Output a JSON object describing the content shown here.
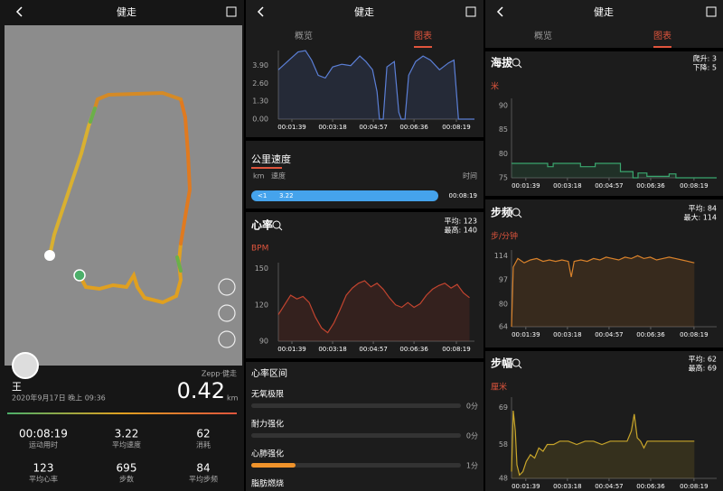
{
  "panel1": {
    "title": "健走",
    "name": "王",
    "date": "2020年9月17日 晚上 09:36",
    "brand": "Zepp·健走",
    "distance": "0.42",
    "distance_unit": "km",
    "stats": [
      {
        "value": "00:08:19",
        "label": "运动用时"
      },
      {
        "value": "3.22",
        "label": "平均速度"
      },
      {
        "value": "62",
        "label": "消耗"
      },
      {
        "value": "123",
        "label": "平均心率"
      },
      {
        "value": "695",
        "label": "步数"
      },
      {
        "value": "84",
        "label": "平均步频"
      }
    ]
  },
  "panel2": {
    "title": "健走",
    "tabs": [
      "概览",
      "图表"
    ],
    "speed_chart": {
      "type": "line",
      "color": "#5b7fd6",
      "xlim": [
        66,
        543
      ],
      "ylim": [
        0,
        5
      ],
      "yticks": [
        {
          "value": 3.9,
          "label": "3.90"
        },
        {
          "value": 2.6,
          "label": "2.60"
        },
        {
          "value": 1.3,
          "label": "1.30"
        },
        {
          "value": 0,
          "label": "0.00"
        }
      ],
      "xticks": [
        {
          "value": 99,
          "label": "00:01:39"
        },
        {
          "value": 198,
          "label": "00:03:18"
        },
        {
          "value": 297,
          "label": "00:04:57"
        },
        {
          "value": 396,
          "label": "00:06:36"
        },
        {
          "value": 499,
          "label": "00:08:19"
        }
      ],
      "x": [
        66,
        92,
        114,
        132,
        147,
        163,
        180,
        198,
        220,
        242,
        264,
        279,
        295,
        306,
        312,
        321,
        330,
        348,
        359,
        365,
        374,
        383,
        400,
        418,
        436,
        458,
        480,
        493,
        499,
        504,
        543
      ],
      "values": [
        3.6,
        4.3,
        4.9,
        5.0,
        4.3,
        3.2,
        3.0,
        3.8,
        4.0,
        3.9,
        4.6,
        4.2,
        3.6,
        2.0,
        0,
        0,
        3.8,
        4.2,
        0.5,
        0,
        0,
        3.2,
        4.2,
        4.6,
        4.3,
        3.6,
        4.1,
        4.3,
        2.0,
        0,
        0
      ]
    },
    "pace": {
      "title": "公里速度",
      "col_km": "km",
      "col_speed": "速度",
      "col_time": "时间",
      "km": "<1",
      "speed": "3.22",
      "time": "00:08:19"
    },
    "heart_rate": {
      "type": "line",
      "title": "心率",
      "avg": "平均: 123",
      "max": "最高: 140",
      "unit": "BPM",
      "color": "#c2442f",
      "xlim": [
        66,
        543
      ],
      "ylim": [
        90,
        155
      ],
      "yticks": [
        150,
        120,
        90
      ],
      "xticks": [
        {
          "value": 99,
          "label": "00:01:39"
        },
        {
          "value": 198,
          "label": "00:03:18"
        },
        {
          "value": 297,
          "label": "00:04:57"
        },
        {
          "value": 396,
          "label": "00:06:36"
        },
        {
          "value": 499,
          "label": "00:08:19"
        }
      ],
      "x": [
        66,
        81,
        96,
        111,
        126,
        141,
        156,
        171,
        186,
        201,
        216,
        231,
        246,
        261,
        276,
        291,
        306,
        321,
        336,
        351,
        366,
        381,
        396,
        411,
        426,
        441,
        456,
        471,
        486,
        501,
        516,
        531
      ],
      "values": [
        112,
        120,
        128,
        125,
        127,
        122,
        110,
        101,
        97,
        105,
        116,
        128,
        134,
        138,
        140,
        135,
        138,
        133,
        126,
        120,
        118,
        122,
        118,
        121,
        128,
        133,
        136,
        138,
        134,
        137,
        130,
        126
      ]
    },
    "zones": {
      "title": "心率区间",
      "rows": [
        {
          "name": "无氧极限",
          "minutes": 0,
          "label": "0分"
        },
        {
          "name": "耐力强化",
          "minutes": 0,
          "label": "0分"
        },
        {
          "name": "心肺强化",
          "minutes": 1,
          "label": "1分"
        },
        {
          "name": "脂肪燃烧"
        }
      ]
    }
  },
  "panel3": {
    "title": "健走",
    "tabs": [
      "概览",
      "图表"
    ],
    "altitude": {
      "type": "line",
      "title": "海拔",
      "avg": "爬升: 3",
      "max": "下降: 5",
      "unit": "米",
      "color": "#3aa56e",
      "xlim": [
        65,
        553
      ],
      "ylim": [
        75,
        91.5
      ],
      "yticks": [
        90,
        85,
        80,
        75
      ],
      "xticks": [
        {
          "value": 99,
          "label": "00:01:39"
        },
        {
          "value": 198,
          "label": "00:03:18"
        },
        {
          "value": 297,
          "label": "00:04:57"
        },
        {
          "value": 396,
          "label": "00:06:36"
        },
        {
          "value": 499,
          "label": "00:08:19"
        }
      ],
      "x": [
        65,
        151,
        151,
        164,
        164,
        229,
        229,
        264,
        264,
        324,
        324,
        354,
        354,
        366,
        366,
        387,
        387,
        440,
        440,
        456,
        456,
        553
      ],
      "values": [
        78,
        78,
        77.3,
        77.3,
        78,
        78,
        77.3,
        77.3,
        78,
        78,
        76.3,
        76.3,
        75,
        75,
        76,
        76,
        75.3,
        75.3,
        75.8,
        75.8,
        75,
        75
      ]
    },
    "cadence": {
      "type": "line",
      "title": "步频",
      "avg": "平均: 84",
      "max": "最大: 114",
      "unit": "步/分钟",
      "color": "#d9822b",
      "xlim": [
        65,
        553
      ],
      "ylim": [
        64,
        118
      ],
      "yticks": [
        114,
        97,
        80,
        64
      ],
      "xticks": [
        {
          "value": 99,
          "label": "00:01:39"
        },
        {
          "value": 198,
          "label": "00:03:18"
        },
        {
          "value": 297,
          "label": "00:04:57"
        },
        {
          "value": 396,
          "label": "00:06:36"
        },
        {
          "value": 499,
          "label": "00:08:19"
        }
      ],
      "x": [
        65,
        69,
        80,
        95,
        110,
        125,
        140,
        155,
        170,
        185,
        200,
        207,
        214,
        230,
        245,
        260,
        275,
        290,
        305,
        320,
        335,
        350,
        365,
        380,
        395,
        410,
        425,
        440,
        455,
        470,
        485,
        500
      ],
      "values": [
        64,
        106,
        112,
        109,
        111,
        112,
        110,
        111,
        110,
        111,
        110,
        99,
        110,
        111,
        110,
        112,
        111,
        113,
        112,
        111,
        113,
        112,
        114,
        112,
        113,
        111,
        112,
        113,
        112,
        111,
        110,
        109
      ]
    },
    "stride": {
      "type": "line",
      "title": "步幅",
      "avg": "平均: 62",
      "max": "最高: 69",
      "unit": "厘米",
      "color": "#c8a52a",
      "xlim": [
        65,
        553
      ],
      "ylim": [
        48,
        72
      ],
      "yticks": [
        69,
        58,
        48
      ],
      "xticks": [
        {
          "value": 99,
          "label": "00:01:39"
        },
        {
          "value": 198,
          "label": "00:03:18"
        },
        {
          "value": 297,
          "label": "00:04:57"
        },
        {
          "value": 396,
          "label": "00:06:36"
        },
        {
          "value": 499,
          "label": "00:08:19"
        }
      ],
      "x": [
        65,
        69,
        74,
        78,
        84,
        92,
        100,
        110,
        120,
        130,
        140,
        150,
        165,
        180,
        200,
        220,
        240,
        260,
        280,
        300,
        320,
        340,
        350,
        357,
        364,
        372,
        380,
        388,
        400,
        420,
        440,
        460,
        480,
        500
      ],
      "values": [
        50,
        68,
        62,
        52,
        49,
        50,
        53,
        55,
        54,
        57,
        56,
        58,
        58,
        59,
        59,
        58,
        59,
        59,
        58,
        59,
        59,
        59,
        62,
        67,
        60,
        59,
        57,
        59,
        59,
        59,
        59,
        59,
        59,
        59
      ]
    }
  }
}
